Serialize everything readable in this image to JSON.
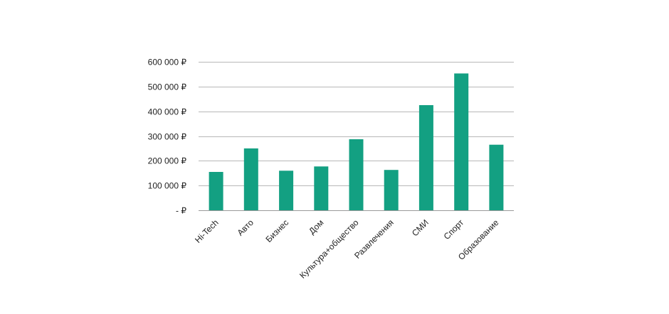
{
  "chart_data": {
    "type": "bar",
    "categories": [
      "Hi-Tech",
      "Авто",
      "Бизнес",
      "Дом",
      "Культура+общество",
      "Развлечения",
      "СМИ",
      "Спорт",
      "Образование"
    ],
    "values": [
      155000,
      250000,
      160000,
      177000,
      287000,
      163000,
      425000,
      553000,
      265000
    ],
    "ylim": [
      0,
      600000
    ],
    "y_ticks": [
      0,
      100000,
      200000,
      300000,
      400000,
      500000,
      600000
    ],
    "y_tick_labels": [
      "-   ₽",
      "100 000 ₽",
      "200 000 ₽",
      "300 000 ₽",
      "400 000 ₽",
      "500 000 ₽",
      "600 000 ₽"
    ],
    "title": "",
    "xlabel": "",
    "ylabel": "",
    "grid": true,
    "legend": "none",
    "bar_color": "#13a082"
  }
}
